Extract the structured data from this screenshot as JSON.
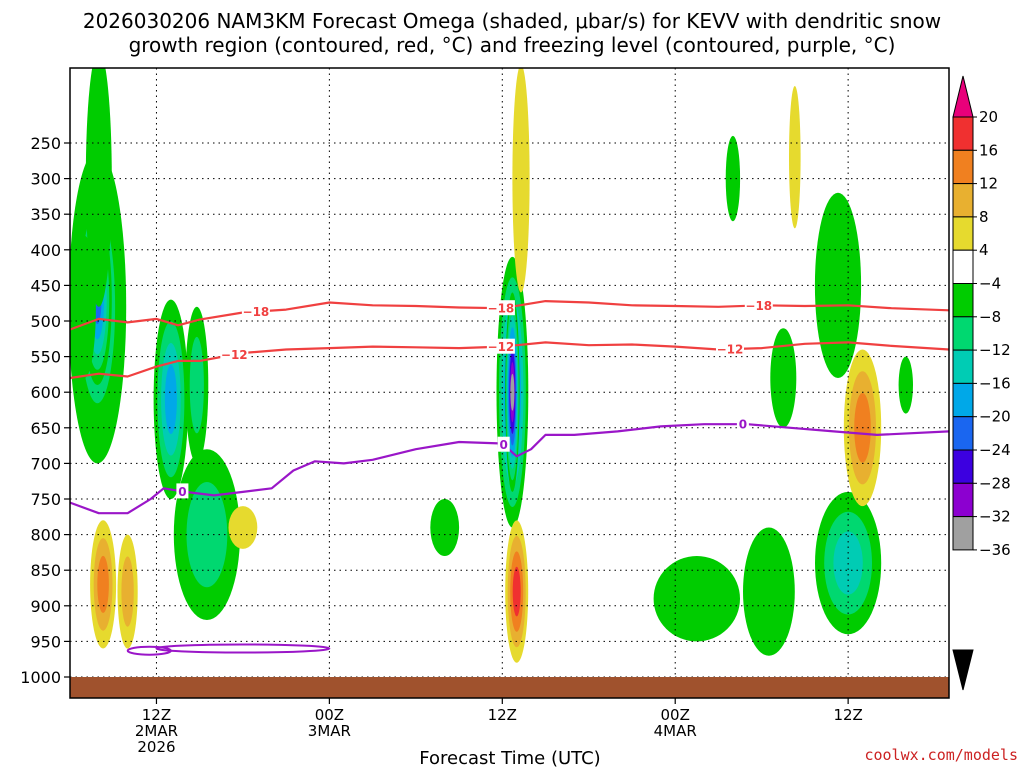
{
  "chart_data": {
    "type": "heatmap",
    "title_line1": "2026030206 NAM3KM Forecast Omega (shaded, μbar/s) for KEVV with dendritic snow",
    "title_line2": "growth region (contoured, red, °C) and freezing level (contoured, purple, °C)",
    "xlabel": "Forecast Time (UTC)",
    "credit": "coolwx.com/models",
    "x_range_hours": [
      0,
      61
    ],
    "y_range_hpa": [
      1000,
      200
    ],
    "y_ticks": [
      250,
      300,
      350,
      400,
      450,
      500,
      550,
      600,
      650,
      700,
      750,
      800,
      850,
      900,
      950,
      1000
    ],
    "x_ticks": [
      {
        "hour": 6,
        "lines": [
          "12Z",
          "2MAR",
          "2026"
        ]
      },
      {
        "hour": 18,
        "lines": [
          "00Z",
          "3MAR"
        ]
      },
      {
        "hour": 30,
        "lines": [
          "12Z"
        ]
      },
      {
        "hour": 42,
        "lines": [
          "00Z",
          "4MAR"
        ]
      },
      {
        "hour": 54,
        "lines": [
          "12Z"
        ]
      }
    ],
    "colorbar": {
      "levels": [
        -36,
        -32,
        -28,
        -24,
        -20,
        -16,
        -12,
        -8,
        -4,
        4,
        8,
        12,
        16,
        20
      ],
      "labels": [
        "20",
        "16",
        "12",
        "8",
        "4",
        "−4",
        "−8",
        "−12",
        "−16",
        "−20",
        "−24",
        "−28",
        "−32",
        "−36"
      ],
      "colors": [
        "#000000",
        "#a0a0a0",
        "#8c00d0",
        "#3c00e0",
        "#1a66f0",
        "#00a8e8",
        "#00ccb4",
        "#00d870",
        "#00cc00",
        "#ffffff",
        "#e6da2e",
        "#e8b030",
        "#f08020",
        "#f03030",
        "#e8007a"
      ]
    },
    "omega_cells": [
      {
        "t": 1.9,
        "p": 480,
        "st": 2.0,
        "sp": 220,
        "v": -12
      },
      {
        "t": 1.9,
        "p": 470,
        "st": 1.0,
        "sp": 120,
        "v": -24
      },
      {
        "t": 2.0,
        "p": 300,
        "st": 0.9,
        "sp": 180,
        "v": -8
      },
      {
        "t": 1.0,
        "p": 480,
        "st": 0.8,
        "sp": 100,
        "v": -8
      },
      {
        "t": 2.3,
        "p": 870,
        "st": 0.9,
        "sp": 90,
        "v": 14
      },
      {
        "t": 4.0,
        "p": 880,
        "st": 0.7,
        "sp": 80,
        "v": 8
      },
      {
        "t": 7.0,
        "p": 610,
        "st": 1.2,
        "sp": 140,
        "v": -20
      },
      {
        "t": 8.8,
        "p": 590,
        "st": 0.8,
        "sp": 110,
        "v": -12
      },
      {
        "t": 9.5,
        "p": 800,
        "st": 2.3,
        "sp": 120,
        "v": -12
      },
      {
        "t": 12.0,
        "p": 790,
        "st": 1.0,
        "sp": 30,
        "v": 4
      },
      {
        "t": 30.7,
        "p": 600,
        "st": 1.1,
        "sp": 190,
        "v": -28
      },
      {
        "t": 30.7,
        "p": 600,
        "st": 0.5,
        "sp": 140,
        "v": -36
      },
      {
        "t": 31.0,
        "p": 880,
        "st": 0.8,
        "sp": 100,
        "v": 16
      },
      {
        "t": 31.3,
        "p": 300,
        "st": 0.6,
        "sp": 160,
        "v": 6
      },
      {
        "t": 26.0,
        "p": 790,
        "st": 1.0,
        "sp": 40,
        "v": -8
      },
      {
        "t": 43.5,
        "p": 890,
        "st": 3.0,
        "sp": 60,
        "v": -8
      },
      {
        "t": 48.5,
        "p": 880,
        "st": 1.8,
        "sp": 90,
        "v": -8
      },
      {
        "t": 54.0,
        "p": 840,
        "st": 2.3,
        "sp": 100,
        "v": -16
      },
      {
        "t": 53.3,
        "p": 450,
        "st": 1.6,
        "sp": 130,
        "v": -8
      },
      {
        "t": 55.0,
        "p": 650,
        "st": 1.3,
        "sp": 110,
        "v": 12
      },
      {
        "t": 50.3,
        "p": 270,
        "st": 0.4,
        "sp": 100,
        "v": 6
      },
      {
        "t": 46.0,
        "p": 300,
        "st": 0.5,
        "sp": 60,
        "v": -8
      },
      {
        "t": 49.5,
        "p": 580,
        "st": 0.9,
        "sp": 70,
        "v": -8
      },
      {
        "t": 58.0,
        "p": 590,
        "st": 0.5,
        "sp": 40,
        "v": -8
      }
    ],
    "contours": [
      {
        "name": "dgz-minus-18",
        "label": "−18",
        "color": "#f04040",
        "label_hours": [
          12.9,
          29.9,
          47.8
        ],
        "t": [
          0,
          2,
          4,
          6,
          7.5,
          9,
          12,
          15,
          18,
          21,
          24,
          27,
          30,
          33,
          36,
          39,
          42,
          45,
          48,
          51,
          54,
          57,
          61
        ],
        "p": [
          512,
          497,
          502,
          497,
          506,
          498,
          488,
          484,
          474,
          478,
          479,
          481,
          482,
          472,
          474,
          478,
          479,
          480,
          478,
          479,
          478,
          482,
          485
        ]
      },
      {
        "name": "dgz-minus-12",
        "label": "−12",
        "color": "#f04040",
        "label_hours": [
          11.4,
          29.9,
          45.8
        ],
        "t": [
          0,
          2,
          4,
          6,
          7.5,
          9,
          12,
          15,
          18,
          21,
          24,
          27,
          30,
          33,
          36,
          39,
          42,
          45,
          48,
          51,
          54,
          57,
          61
        ],
        "p": [
          580,
          574,
          578,
          564,
          556,
          556,
          545,
          540,
          538,
          536,
          537,
          538,
          536,
          530,
          534,
          533,
          536,
          540,
          538,
          532,
          530,
          535,
          540
        ]
      },
      {
        "name": "freezing-level-0",
        "label": "0",
        "color": "#9a16c8",
        "label_hours": [
          7.8,
          30.1,
          46.7
        ],
        "t": [
          0,
          2,
          4,
          5.6,
          6.5,
          8,
          10,
          12,
          14,
          15.5,
          17,
          19,
          21,
          24,
          27,
          30,
          31,
          32,
          33,
          35,
          38,
          41,
          44,
          47,
          50,
          53,
          56,
          61
        ],
        "p": [
          755,
          770,
          770,
          750,
          735,
          740,
          745,
          740,
          735,
          710,
          697,
          700,
          695,
          680,
          670,
          672,
          690,
          680,
          660,
          660,
          655,
          648,
          645,
          645,
          650,
          655,
          660,
          655
        ]
      }
    ],
    "freezing_loops": [
      {
        "t_center": 5.5,
        "p_center": 963,
        "half_width_hours": 1.5
      },
      {
        "t_center": 12.0,
        "p_center": 960,
        "half_width_hours": 6.0
      }
    ]
  }
}
